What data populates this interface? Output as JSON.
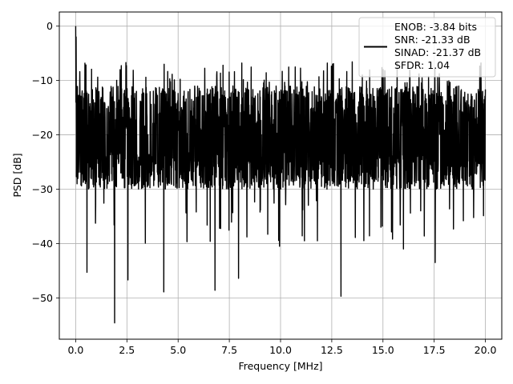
{
  "chart_data": {
    "type": "line",
    "title": "",
    "xlabel": "Frequency [MHz]",
    "ylabel": "PSD [dB]",
    "xlim": [
      -0.8,
      20.8
    ],
    "ylim": [
      -57.6,
      2.6
    ],
    "xticks": [
      0.0,
      2.5,
      5.0,
      7.5,
      10.0,
      12.5,
      15.0,
      17.5,
      20.0
    ],
    "xtick_labels": [
      "0.0",
      "2.5",
      "5.0",
      "7.5",
      "10.0",
      "12.5",
      "15.0",
      "17.5",
      "20.0"
    ],
    "yticks": [
      0,
      -10,
      -20,
      -30,
      -40,
      -50
    ],
    "ytick_labels": [
      "0",
      "−10",
      "−20",
      "−30",
      "−40",
      "−50"
    ],
    "grid": true,
    "legend_position": "top-right",
    "legend_lines": [
      "ENOB: -3.84 bits",
      "SNR: -21.33 dB",
      "SINAD: -21.37 dB",
      "SFDR: 1.04"
    ],
    "line_color": "#000000",
    "series": [
      {
        "x_start": 0.0,
        "x_end": 20.0,
        "noise_floor_mean": -19.5,
        "noise_floor_range": [
          -30,
          -11
        ],
        "peak_envelope_max": -6.5,
        "dc_peak": [
          0.0,
          0.0
        ],
        "notable_minima": [
          [
            1.9,
            -54.6
          ],
          [
            0.55,
            -45.3
          ],
          [
            2.55,
            -46.7
          ],
          [
            4.3,
            -48.9
          ],
          [
            6.8,
            -48.6
          ],
          [
            7.95,
            -46.4
          ],
          [
            12.95,
            -49.7
          ],
          [
            9.95,
            -40.5
          ],
          [
            11.8,
            -39.5
          ],
          [
            17.55,
            -43.5
          ],
          [
            14.9,
            -37.0
          ],
          [
            16.0,
            -41.0
          ]
        ]
      }
    ]
  }
}
